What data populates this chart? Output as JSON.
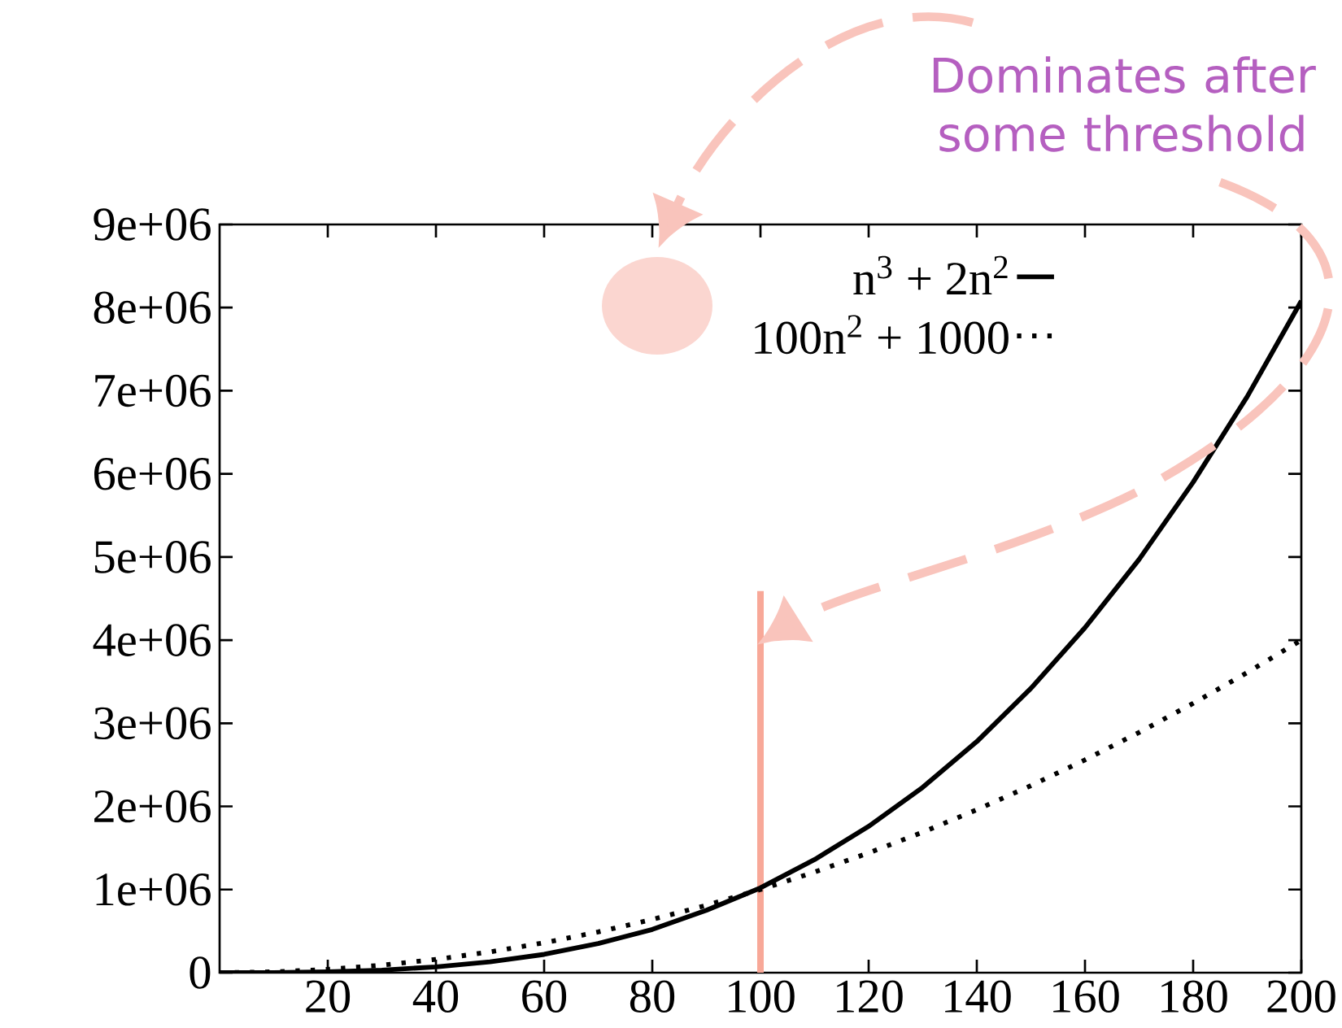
{
  "chart_data": {
    "type": "line",
    "xlim": [
      0,
      200
    ],
    "ylim": [
      0,
      9000000
    ],
    "xticks": [
      20,
      40,
      60,
      80,
      100,
      120,
      140,
      160,
      180,
      200
    ],
    "yticks": [
      0,
      {
        "value": 1000000,
        "label": "1e+06"
      },
      {
        "value": 2000000,
        "label": "2e+06"
      },
      {
        "value": 3000000,
        "label": "3e+06"
      },
      {
        "value": 4000000,
        "label": "4e+06"
      },
      {
        "value": 5000000,
        "label": "5e+06"
      },
      {
        "value": 6000000,
        "label": "6e+06"
      },
      {
        "value": 7000000,
        "label": "7e+06"
      },
      {
        "value": 8000000,
        "label": "8e+06"
      },
      {
        "value": 9000000,
        "label": "9e+06"
      }
    ],
    "x": [
      0,
      10,
      20,
      30,
      40,
      50,
      60,
      70,
      80,
      90,
      100,
      110,
      120,
      130,
      140,
      150,
      160,
      170,
      180,
      190,
      200
    ],
    "series": [
      {
        "name": "n$^{3}$ + 2n$^{2}$",
        "color": "#000000",
        "line_style": "solid",
        "values": [
          0,
          0,
          10000,
          30000,
          70000,
          130000,
          220000,
          350000,
          520000,
          750000,
          1020000,
          1360000,
          1760000,
          2230000,
          2780000,
          3420000,
          4150000,
          4970000,
          5900000,
          6930000,
          8080000
        ]
      },
      {
        "name": "100n$^{2}$ + 1000",
        "color": "#000000",
        "line_style": "dotted",
        "values": [
          0,
          10000,
          40000,
          90000,
          160000,
          250000,
          360000,
          490000,
          640000,
          810000,
          1000000,
          1210000,
          1440000,
          1690000,
          1960000,
          2250000,
          2560000,
          2890000,
          3240000,
          3610000,
          4000000
        ]
      }
    ],
    "ref_lines": [
      {
        "axis": "x",
        "value": 100,
        "color": "#f8a898"
      }
    ],
    "legend": "top right",
    "marker": "none",
    "grid": false,
    "annotations": [
      "Dominates after some threshold"
    ]
  }
}
